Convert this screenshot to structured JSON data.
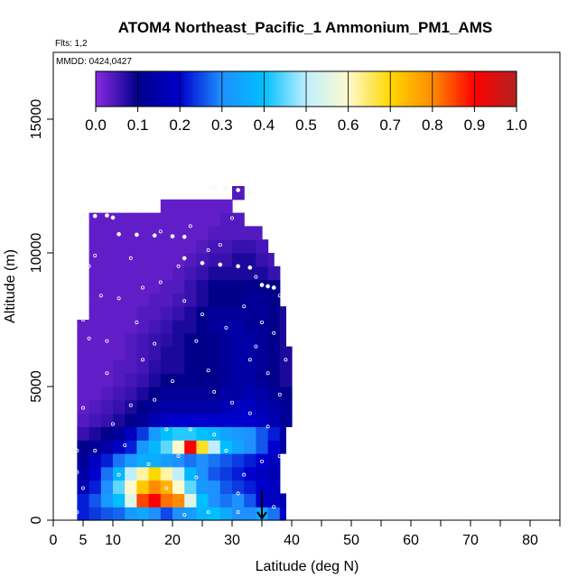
{
  "chart_data": {
    "type": "heatmap",
    "title": "ATOM4 Northeast_Pacific_1 Ammonium_PM1_AMS",
    "subtitle_flights": "Flts: 1,2",
    "subtitle_dates": "MMDD: 0424,0427",
    "xlabel": "Latitude (deg N)",
    "ylabel": "Altitude (m)",
    "xlim": [
      0,
      85
    ],
    "ylim": [
      0,
      17500
    ],
    "x_ticks": [
      0,
      5,
      10,
      20,
      30,
      40,
      50,
      60,
      70,
      80
    ],
    "x_minor_ticks": [
      15,
      25,
      35,
      45,
      55,
      65,
      75,
      85
    ],
    "y_ticks": [
      0,
      5000,
      10000,
      15000
    ],
    "colorbar": {
      "range": [
        0.0,
        1.0
      ],
      "tick_labels": [
        "0.0",
        "0.1",
        "0.2",
        "0.3",
        "0.4",
        "0.5",
        "0.6",
        "0.7",
        "0.8",
        "0.9",
        "1.0"
      ],
      "colors": [
        "#8a2be2",
        "#00008b",
        "#0000cd",
        "#1e90ff",
        "#00bfff",
        "#bfefff",
        "#fffacd",
        "#ffd700",
        "#ff8c00",
        "#ff0000",
        "#b22222"
      ]
    },
    "curtain": {
      "lat_bins": [
        4,
        6,
        8,
        10,
        12,
        14,
        16,
        18,
        20,
        22,
        24,
        26,
        28,
        30,
        32,
        34,
        36,
        38,
        40
      ],
      "alt_bins": [
        0,
        500,
        1000,
        1500,
        2000,
        2500,
        3000,
        3500,
        4000,
        4500,
        5000,
        5500,
        6000,
        6500,
        7000,
        7500,
        8000,
        8500,
        9000,
        9500,
        10000,
        10500,
        11000,
        11500,
        12000,
        12500
      ],
      "values": [
        [
          0.22,
          0.24,
          0.26,
          0.27,
          0.32,
          0.35,
          0.3,
          0.25,
          0.3,
          0.33,
          0.38,
          0.4,
          0.35,
          0.3,
          0.3,
          0.35,
          0.28,
          0.2
        ],
        [
          0.22,
          0.26,
          0.32,
          0.4,
          0.55,
          0.85,
          0.9,
          0.82,
          0.8,
          0.55,
          0.4,
          0.3,
          0.28,
          0.3,
          0.26,
          0.2,
          0.18,
          0.16
        ],
        [
          0.16,
          0.22,
          0.3,
          0.45,
          0.6,
          0.72,
          0.8,
          0.75,
          0.6,
          0.45,
          0.32,
          0.3,
          0.26,
          0.24,
          0.22,
          0.2,
          0.18,
          0.16
        ],
        [
          0.14,
          0.2,
          0.28,
          0.38,
          0.5,
          0.62,
          0.7,
          0.62,
          0.5,
          0.38,
          0.3,
          0.26,
          0.24,
          0.22,
          0.2,
          0.18,
          0.16,
          0.14
        ],
        [
          0.12,
          0.18,
          0.22,
          0.28,
          0.32,
          0.36,
          0.36,
          0.33,
          0.3,
          0.28,
          0.3,
          0.28,
          0.26,
          0.24,
          0.22,
          0.2,
          0.18,
          0.14
        ],
        [
          0.1,
          0.12,
          0.14,
          0.18,
          0.22,
          0.32,
          0.38,
          0.45,
          0.6,
          0.9,
          0.68,
          0.5,
          0.4,
          0.34,
          0.3,
          0.26,
          0.2,
          0.14
        ],
        [
          0.06,
          0.08,
          0.1,
          0.12,
          0.18,
          0.24,
          0.32,
          0.4,
          0.42,
          0.42,
          0.4,
          0.38,
          0.34,
          0.32,
          0.3,
          0.26,
          0.22,
          0.14
        ],
        [
          0.04,
          0.05,
          0.06,
          0.08,
          0.1,
          0.12,
          0.16,
          0.18,
          0.2,
          0.2,
          0.2,
          0.2,
          0.2,
          0.2,
          0.2,
          0.18,
          0.16,
          0.12
        ],
        [
          0.03,
          0.04,
          0.05,
          0.06,
          0.08,
          0.1,
          0.12,
          0.14,
          0.14,
          0.14,
          0.14,
          0.14,
          0.16,
          0.18,
          0.18,
          0.16,
          0.14,
          0.12
        ],
        [
          0.03,
          0.03,
          0.04,
          0.05,
          0.06,
          0.08,
          0.1,
          0.12,
          0.12,
          0.12,
          0.12,
          0.12,
          0.14,
          0.14,
          0.16,
          0.14,
          0.12,
          0.1
        ],
        [
          0.03,
          0.03,
          0.03,
          0.04,
          0.05,
          0.06,
          0.08,
          0.1,
          0.1,
          0.1,
          0.1,
          0.1,
          0.12,
          0.14,
          0.14,
          0.12,
          0.1,
          0.08
        ],
        [
          0.03,
          0.03,
          0.03,
          0.04,
          0.04,
          0.05,
          0.07,
          0.08,
          0.08,
          0.1,
          0.1,
          0.1,
          0.12,
          0.14,
          0.14,
          0.12,
          0.1,
          0.08
        ],
        [
          0.03,
          0.03,
          0.03,
          0.03,
          0.04,
          0.05,
          0.06,
          0.08,
          0.08,
          0.1,
          0.1,
          0.1,
          0.12,
          0.14,
          0.14,
          0.12,
          0.1,
          0.08
        ],
        [
          0.03,
          0.03,
          0.03,
          0.03,
          0.04,
          0.05,
          0.06,
          0.07,
          0.08,
          0.1,
          0.1,
          0.1,
          0.12,
          0.14,
          0.14,
          0.12,
          0.1,
          0.08
        ],
        [
          0.03,
          0.03,
          0.03,
          0.03,
          0.03,
          0.04,
          0.05,
          0.06,
          0.08,
          0.08,
          0.1,
          0.12,
          0.14,
          0.14,
          0.12,
          0.12,
          0.1,
          0.08
        ],
        [
          0.03,
          0.03,
          0.03,
          0.03,
          0.03,
          0.04,
          0.04,
          0.05,
          0.06,
          0.08,
          0.1,
          0.12,
          0.12,
          0.12,
          0.12,
          0.12,
          0.1,
          0.08
        ],
        [
          0.03,
          0.03,
          0.03,
          0.03,
          0.03,
          0.03,
          0.04,
          0.04,
          0.05,
          0.06,
          0.08,
          0.1,
          0.1,
          0.1,
          0.12,
          0.12,
          0.1,
          0.08
        ],
        [
          0.03,
          0.03,
          0.03,
          0.03,
          0.03,
          0.03,
          0.03,
          0.04,
          0.04,
          0.06,
          0.08,
          0.1,
          0.1,
          0.1,
          0.1,
          0.1,
          0.1,
          0.08
        ],
        [
          0.03,
          0.03,
          0.03,
          0.03,
          0.03,
          0.03,
          0.03,
          0.03,
          0.04,
          0.05,
          0.06,
          0.08,
          0.08,
          0.08,
          0.08,
          0.08,
          0.06,
          0.05
        ],
        [
          0.03,
          0.03,
          0.03,
          0.03,
          0.03,
          0.03,
          0.03,
          0.03,
          0.03,
          0.04,
          0.05,
          0.06,
          0.06,
          0.08,
          0.08,
          0.06,
          0.05,
          0.05
        ],
        [
          0.03,
          0.03,
          0.03,
          0.03,
          0.03,
          0.03,
          0.03,
          0.03,
          0.03,
          0.03,
          0.04,
          0.05,
          0.05,
          0.06,
          0.06,
          0.05,
          0.05,
          0.05
        ],
        [
          0.03,
          0.03,
          0.03,
          0.03,
          0.03,
          0.03,
          0.03,
          0.03,
          0.03,
          0.03,
          0.03,
          0.04,
          0.04,
          0.04,
          0.04,
          0.04,
          0.04,
          0.04
        ],
        [
          0.03,
          0.03,
          0.03,
          0.03,
          0.03,
          0.03,
          0.03,
          0.03,
          0.03,
          0.03,
          0.03,
          0.03,
          0.04,
          0.04,
          0.04,
          0.04,
          0.04,
          0.04
        ],
        [
          0.03,
          0.03,
          0.03,
          0.03,
          0.03,
          0.03,
          0.03,
          0.03,
          0.03,
          0.03,
          0.03,
          0.03,
          0.03,
          0.03,
          0.03,
          0.03,
          0.03,
          0.03
        ],
        [
          0.03,
          0.03,
          0.03,
          0.03,
          0.03,
          0.03,
          0.03,
          0.03,
          0.03,
          0.03,
          0.03,
          0.03,
          0.03,
          0.04,
          0.04,
          0.04,
          0.03,
          0.03
        ]
      ],
      "top_alt_by_lat": [
        8000,
        11500,
        11500,
        11500,
        11500,
        11500,
        11500,
        12000,
        12000,
        12000,
        12000,
        12000,
        12000,
        12500,
        12500,
        11500,
        10000,
        8000
      ],
      "bottom_lat_edge_by_alt": [
        4,
        4,
        4,
        4,
        4,
        4,
        4,
        4,
        4,
        4,
        4,
        4,
        4,
        4,
        4,
        6,
        6,
        6,
        6,
        6,
        6,
        6,
        6,
        6,
        30
      ],
      "right_lat_edge_by_alt": [
        39,
        39,
        38,
        38,
        38,
        39,
        39,
        40,
        40,
        40,
        41,
        40,
        40,
        39,
        39,
        39,
        39,
        38,
        38,
        37,
        36,
        35,
        32,
        30,
        32
      ]
    },
    "flight_track": [
      [
        5,
        11350
      ],
      [
        7,
        11380
      ],
      [
        9,
        11400
      ],
      [
        10,
        11320
      ],
      [
        11,
        10700
      ],
      [
        14,
        10680
      ],
      [
        17,
        10650
      ],
      [
        20,
        10620
      ],
      [
        22,
        10600
      ],
      [
        22,
        9800
      ],
      [
        25,
        9620
      ],
      [
        28,
        9560
      ],
      [
        31,
        9500
      ],
      [
        33,
        9450
      ],
      [
        27,
        12450
      ],
      [
        29,
        12400
      ],
      [
        31,
        12350
      ],
      [
        33,
        12300
      ],
      [
        35,
        8800
      ],
      [
        36,
        8750
      ],
      [
        37,
        8700
      ]
    ],
    "sample_points": [
      [
        5,
        7500
      ],
      [
        6,
        6800
      ],
      [
        5,
        4200
      ],
      [
        4,
        2600
      ],
      [
        4,
        1800
      ],
      [
        5,
        1200
      ],
      [
        4,
        300
      ],
      [
        7,
        9900
      ],
      [
        8,
        8400
      ],
      [
        9,
        5500
      ],
      [
        10,
        3600
      ],
      [
        11,
        1700
      ],
      [
        12,
        2800
      ],
      [
        13,
        9800
      ],
      [
        14,
        7400
      ],
      [
        15,
        6000
      ],
      [
        16,
        2100
      ],
      [
        17,
        4500
      ],
      [
        18,
        8900
      ],
      [
        19,
        1200
      ],
      [
        20,
        5200
      ],
      [
        21,
        2400
      ],
      [
        22,
        8200
      ],
      [
        23,
        3400
      ],
      [
        24,
        1600
      ],
      [
        25,
        7700
      ],
      [
        26,
        5600
      ],
      [
        27,
        4800
      ],
      [
        28,
        10300
      ],
      [
        29,
        2600
      ],
      [
        30,
        11300
      ],
      [
        31,
        1000
      ],
      [
        32,
        8000
      ],
      [
        33,
        4000
      ],
      [
        34,
        6500
      ],
      [
        35,
        2200
      ],
      [
        36,
        5500
      ],
      [
        37,
        7000
      ],
      [
        38,
        8400
      ],
      [
        38,
        4700
      ],
      [
        39,
        6000
      ],
      [
        38,
        2400
      ],
      [
        37,
        500
      ],
      [
        36,
        3500
      ],
      [
        35,
        7400
      ],
      [
        34,
        9100
      ],
      [
        33,
        6000
      ],
      [
        32,
        1700
      ],
      [
        30,
        4400
      ],
      [
        29,
        7200
      ],
      [
        27,
        3200
      ],
      [
        26,
        10100
      ],
      [
        24,
        6700
      ],
      [
        23,
        11000
      ],
      [
        21,
        9500
      ],
      [
        19,
        3400
      ],
      [
        17,
        6600
      ],
      [
        15,
        8700
      ],
      [
        13,
        4300
      ],
      [
        11,
        8300
      ],
      [
        9,
        6700
      ],
      [
        7,
        2600
      ],
      [
        6,
        9500
      ],
      [
        18,
        10800
      ],
      [
        22,
        200
      ],
      [
        26,
        300
      ],
      [
        31,
        300
      ]
    ],
    "arrow_marker": {
      "lat": 35,
      "alt_start": 600,
      "alt_end": 0
    }
  }
}
